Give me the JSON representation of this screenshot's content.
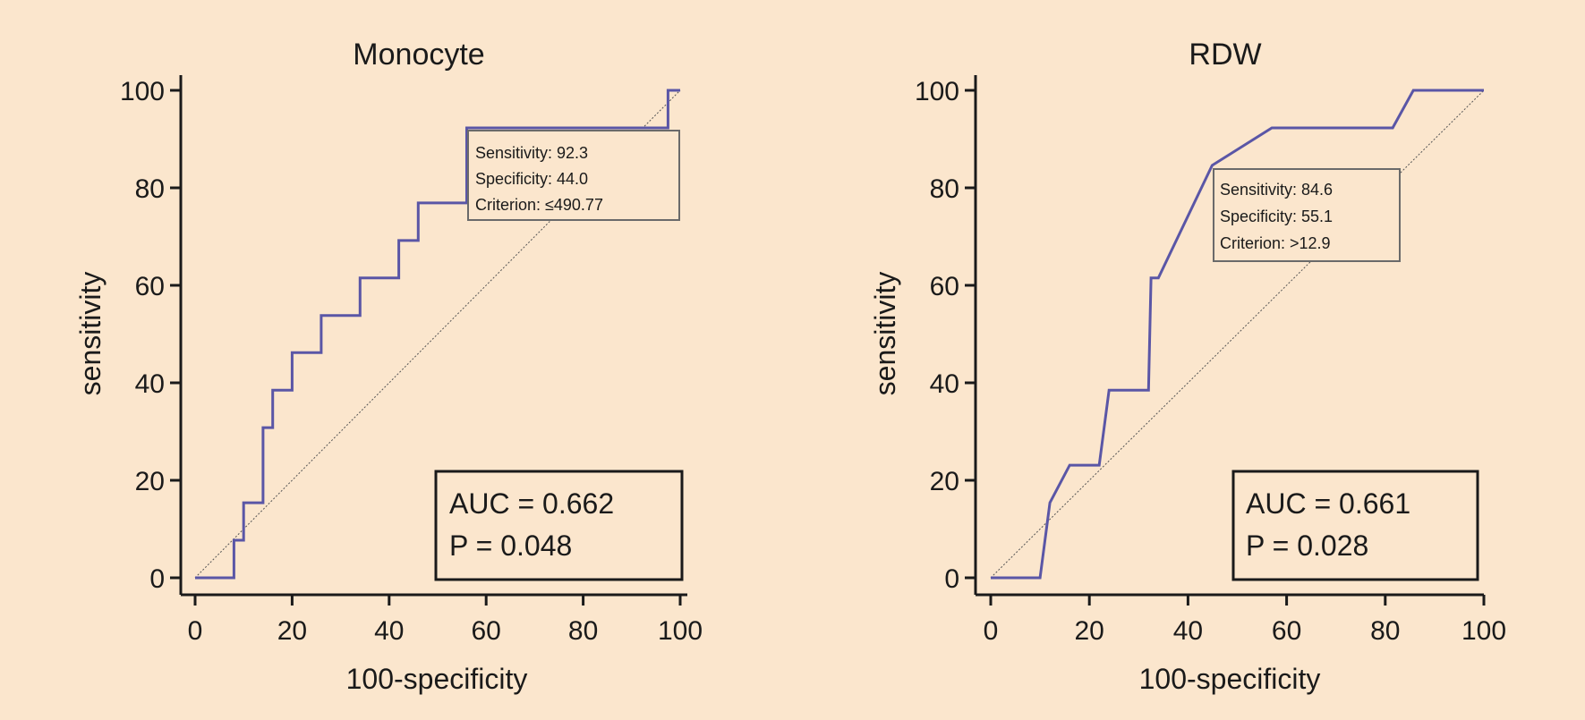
{
  "colors": {
    "background": "#fbe6cd",
    "curve": "#5a56a6",
    "axis": "#1a1a1a",
    "diagonal": "#555555"
  },
  "chart_data": [
    {
      "type": "line",
      "title": "Monocyte",
      "xlabel": "100-specificity",
      "ylabel": "sensitivity",
      "xlim": [
        0,
        100
      ],
      "ylim": [
        0,
        100
      ],
      "xticks": [
        "0",
        "20",
        "40",
        "60",
        "80",
        "100"
      ],
      "yticks": [
        "0",
        "20",
        "40",
        "60",
        "80",
        "100"
      ],
      "grid": false,
      "diagonal_reference": true,
      "series": [
        {
          "x": [
            0,
            8,
            8,
            10,
            10,
            14,
            14,
            16,
            16,
            20,
            20,
            26,
            26,
            34,
            34,
            42,
            42,
            46,
            46,
            56,
            56,
            97.5,
            97.5,
            100
          ],
          "y": [
            0,
            0,
            7.7,
            7.7,
            15.4,
            15.4,
            30.8,
            30.8,
            38.5,
            38.5,
            46.2,
            46.2,
            53.8,
            53.8,
            61.5,
            61.5,
            69.2,
            69.2,
            76.9,
            76.9,
            92.3,
            92.3,
            100,
            100
          ]
        }
      ],
      "annotation": {
        "lines": [
          "Sensitivity: 92.3",
          "Specificity: 44.0",
          "Criterion: ≤490.77"
        ],
        "point": [
          56,
          92.3
        ]
      },
      "stats": {
        "auc": "AUC = 0.662",
        "p": "P = 0.048"
      }
    },
    {
      "type": "line",
      "title": "RDW",
      "xlabel": "100-specificity",
      "ylabel": "sensitivity",
      "xlim": [
        0,
        100
      ],
      "ylim": [
        0,
        100
      ],
      "xticks": [
        "0",
        "20",
        "40",
        "60",
        "80",
        "100"
      ],
      "yticks": [
        "0",
        "20",
        "40",
        "60",
        "80",
        "100"
      ],
      "grid": false,
      "diagonal_reference": true,
      "series": [
        {
          "x": [
            0,
            10,
            12,
            16,
            22,
            24,
            32,
            32.5,
            34,
            44.9,
            57,
            81.5,
            85.7,
            100
          ],
          "y": [
            0,
            0,
            15.4,
            23.1,
            23.1,
            38.5,
            38.5,
            61.5,
            61.5,
            84.6,
            92.3,
            92.3,
            100,
            100
          ]
        }
      ],
      "annotation": {
        "lines": [
          "Sensitivity: 84.6",
          "Specificity: 55.1",
          "Criterion: >12.9"
        ],
        "point": [
          44.9,
          84.6
        ]
      },
      "stats": {
        "auc": "AUC = 0.661",
        "p": "P = 0.028"
      }
    }
  ]
}
